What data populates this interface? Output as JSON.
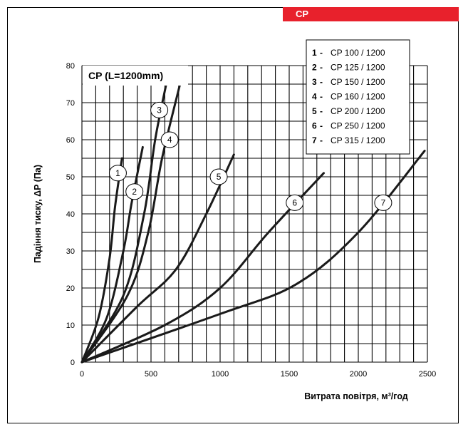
{
  "header": {
    "tab_label": "CP"
  },
  "chart_data": {
    "type": "line",
    "title": "CP (L=1200mm)",
    "xlabel": "Витрата повітря, м³/год",
    "ylabel": "Падіння тиску, ΔP (Па)",
    "xlim": [
      0,
      2500
    ],
    "ylim": [
      0,
      80
    ],
    "x_ticks": [
      "0",
      "500",
      "1000",
      "1500",
      "2000",
      "2500"
    ],
    "y_ticks": [
      "0",
      "10",
      "20",
      "30",
      "40",
      "50",
      "60",
      "70",
      "80"
    ],
    "grid": true,
    "legend_position": "top-right",
    "series": [
      {
        "id": "1",
        "name": "CP 100 / 1200",
        "points": [
          [
            0,
            0
          ],
          [
            120,
            12
          ],
          [
            200,
            28
          ],
          [
            240,
            42
          ],
          [
            290,
            55
          ]
        ]
      },
      {
        "id": "2",
        "name": "CP 125 / 1200",
        "points": [
          [
            0,
            0
          ],
          [
            180,
            12
          ],
          [
            300,
            30
          ],
          [
            360,
            43
          ],
          [
            440,
            58
          ]
        ]
      },
      {
        "id": "3",
        "name": "CP 150 / 1200",
        "points": [
          [
            0,
            0
          ],
          [
            300,
            18
          ],
          [
            450,
            40
          ],
          [
            530,
            60
          ],
          [
            610,
            75
          ]
        ]
      },
      {
        "id": "4",
        "name": "CP 160 / 1200",
        "points": [
          [
            0,
            0
          ],
          [
            330,
            18
          ],
          [
            480,
            35
          ],
          [
            580,
            55
          ],
          [
            710,
            75
          ]
        ]
      },
      {
        "id": "5",
        "name": "CP 200 / 1200",
        "points": [
          [
            0,
            0
          ],
          [
            400,
            15
          ],
          [
            680,
            25
          ],
          [
            900,
            40
          ],
          [
            1100,
            56
          ]
        ]
      },
      {
        "id": "6",
        "name": "CP 250 / 1200",
        "points": [
          [
            0,
            0
          ],
          [
            600,
            10
          ],
          [
            1000,
            20
          ],
          [
            1350,
            35
          ],
          [
            1750,
            51
          ]
        ]
      },
      {
        "id": "7",
        "name": "CP 315 / 1200",
        "points": [
          [
            0,
            0
          ],
          [
            1000,
            13
          ],
          [
            1550,
            21
          ],
          [
            2000,
            35
          ],
          [
            2480,
            57
          ]
        ]
      }
    ],
    "curve_labels": [
      {
        "text": "1",
        "x": 260,
        "y": 51
      },
      {
        "text": "2",
        "x": 380,
        "y": 46
      },
      {
        "text": "3",
        "x": 560,
        "y": 68
      },
      {
        "text": "4",
        "x": 635,
        "y": 60
      },
      {
        "text": "5",
        "x": 990,
        "y": 50
      },
      {
        "text": "6",
        "x": 1540,
        "y": 43
      },
      {
        "text": "7",
        "x": 2180,
        "y": 43
      }
    ]
  }
}
